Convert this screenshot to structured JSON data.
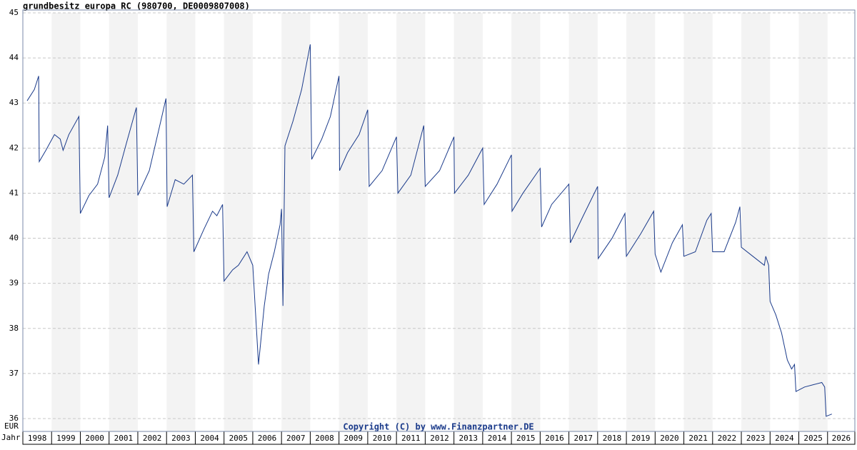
{
  "chart_data": {
    "type": "line",
    "title": "grundbesitz europa RC (980700, DE0009807008)",
    "annotation": "Copyright (C) by www.Finanzpartner.DE",
    "ylabel": "EUR",
    "xlabel": "Jahr",
    "xlim": [
      1998,
      2026.95
    ],
    "ylim": [
      36,
      45
    ],
    "yticks": [
      36,
      37,
      38,
      39,
      40,
      41,
      42,
      43,
      44,
      45
    ],
    "xticks": [
      1998,
      1999,
      2000,
      2001,
      2002,
      2003,
      2004,
      2005,
      2006,
      2007,
      2008,
      2009,
      2010,
      2011,
      2012,
      2013,
      2014,
      2015,
      2016,
      2017,
      2018,
      2019,
      2020,
      2021,
      2022,
      2023,
      2024,
      2025,
      2026
    ],
    "grid": true,
    "x": [
      1998.15,
      1998.4,
      1998.55,
      1998.57,
      1998.8,
      1999.1,
      1999.3,
      1999.4,
      1999.6,
      1999.95,
      2000.0,
      2000.3,
      2000.6,
      2000.85,
      2000.95,
      2001.0,
      2001.3,
      2001.6,
      2001.95,
      2002.0,
      2002.4,
      2002.8,
      2002.98,
      2003.02,
      2003.3,
      2003.6,
      2003.9,
      2003.95,
      2004.3,
      2004.6,
      2004.75,
      2004.95,
      2005.0,
      2005.3,
      2005.5,
      2005.8,
      2006.0,
      2006.2,
      2006.4,
      2006.55,
      2006.75,
      2006.95,
      2007.0,
      2007.05,
      2007.12,
      2007.4,
      2007.7,
      2008.0,
      2008.05,
      2008.4,
      2008.7,
      2009.0,
      2009.02,
      2009.3,
      2009.7,
      2010.0,
      2010.05,
      2010.5,
      2011.0,
      2011.05,
      2011.5,
      2011.95,
      2012.0,
      2012.5,
      2013.0,
      2013.02,
      2013.5,
      2014.0,
      2014.05,
      2014.5,
      2015.0,
      2015.02,
      2015.4,
      2016.0,
      2016.05,
      2016.4,
      2017.0,
      2017.05,
      2017.5,
      2018.0,
      2018.02,
      2018.5,
      2018.95,
      2019.0,
      2019.5,
      2019.95,
      2020.0,
      2020.2,
      2020.6,
      2020.95,
      2021.0,
      2021.4,
      2021.8,
      2021.95,
      2022.0,
      2022.4,
      2022.8,
      2022.95,
      2023.0,
      2023.4,
      2023.8,
      2023.85,
      2023.95,
      2024.0,
      2024.2,
      2024.4,
      2024.6,
      2024.75,
      2024.85,
      2024.9,
      2025.2,
      2025.5,
      2025.8,
      2025.9,
      2025.95,
      2026.15
    ],
    "series": [
      {
        "color": "#1a3a8a",
        "values": [
          43.05,
          43.3,
          43.6,
          41.7,
          41.95,
          42.3,
          42.2,
          41.95,
          42.3,
          42.7,
          40.55,
          40.95,
          41.2,
          41.8,
          42.5,
          40.9,
          41.4,
          42.1,
          42.9,
          40.95,
          41.5,
          42.6,
          43.1,
          40.7,
          41.3,
          41.2,
          41.4,
          39.7,
          40.2,
          40.6,
          40.5,
          40.75,
          39.05,
          39.3,
          39.4,
          39.7,
          39.4,
          37.2,
          38.5,
          39.2,
          39.7,
          40.3,
          40.65,
          38.5,
          42.05,
          42.6,
          43.3,
          44.3,
          41.75,
          42.2,
          42.7,
          43.6,
          41.5,
          41.9,
          42.3,
          42.85,
          41.15,
          41.5,
          42.25,
          41.0,
          41.4,
          42.5,
          41.15,
          41.5,
          42.25,
          41.0,
          41.4,
          42.0,
          40.75,
          41.2,
          41.85,
          40.6,
          41.0,
          41.55,
          40.25,
          40.75,
          41.2,
          39.9,
          40.5,
          41.15,
          39.55,
          40.0,
          40.55,
          39.6,
          40.1,
          40.6,
          39.65,
          39.25,
          39.9,
          40.3,
          39.6,
          39.7,
          40.4,
          40.55,
          39.7,
          39.7,
          40.35,
          40.7,
          39.8,
          39.6,
          39.4,
          39.6,
          39.4,
          38.6,
          38.3,
          37.9,
          37.3,
          37.1,
          37.2,
          36.6,
          36.7,
          36.75,
          36.8,
          36.7,
          36.05,
          36.1
        ]
      }
    ]
  }
}
